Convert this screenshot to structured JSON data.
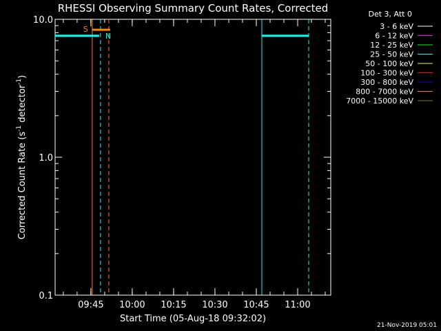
{
  "chart_data": {
    "type": "line",
    "title": "RHESSI Observing Summary Count Rates, Corrected",
    "xlabel": "Start Time (05-Aug-18 09:32:02)",
    "ylabel_main": "Corrected Count Rate (s",
    "ylabel_sup1": "-1",
    "ylabel_mid": " detector",
    "ylabel_sup2": "-1",
    "ylabel_end": ")",
    "y_scale": "log",
    "ylim": [
      0.1,
      10.0
    ],
    "xlim": [
      "09:32:02",
      "11:12:00"
    ],
    "x_ticks": [
      "09:45",
      "10:00",
      "10:15",
      "10:30",
      "10:45",
      "11:00"
    ],
    "y_ticks": [
      "0.1",
      "1.0",
      "10.0"
    ],
    "legend_title": "Det 3, Att 0",
    "legend_position": "right",
    "legend": [
      {
        "label": "3 - 6 keV",
        "color": "#ffffff"
      },
      {
        "label": "6 - 12 keV",
        "color": "#ff00ff"
      },
      {
        "label": "12 - 25 keV",
        "color": "#00ff00"
      },
      {
        "label": "25 - 50 keV",
        "color": "#00ffff"
      },
      {
        "label": "50 - 100 keV",
        "color": "#ffff00"
      },
      {
        "label": "100 - 300 keV",
        "color": "#ff0000"
      },
      {
        "label": "300 - 800 keV",
        "color": "#0000ff"
      },
      {
        "label": "800 - 7000 keV",
        "color": "#ff8000"
      },
      {
        "label": "7000 - 15000 keV",
        "color": "#808000"
      }
    ],
    "series": [
      {
        "name": "25 - 50 keV",
        "color": "#00ffff",
        "segments": [
          {
            "x": [
              "09:32:02",
              "09:48:00"
            ],
            "y": [
              7.6,
              7.6
            ]
          },
          {
            "x": [
              "10:47:00",
              "11:04:00"
            ],
            "y": [
              7.6,
              7.6
            ]
          }
        ]
      }
    ],
    "flag_bar": {
      "color": "#ff8000",
      "x": [
        "09:45:30",
        "09:52:00"
      ],
      "y": 8.4
    },
    "annotations": [
      {
        "text": "S",
        "color": "#ff8000"
      },
      {
        "text": "N",
        "color": "#00ffff"
      }
    ],
    "vlines": [
      {
        "x": "09:45:30",
        "color": "#ff8000",
        "style": "solid"
      },
      {
        "x": "09:48:30",
        "color": "#00ffff",
        "style": "dashed"
      },
      {
        "x": "09:51:30",
        "color": "#ff8000",
        "style": "dashed"
      },
      {
        "x": "10:47:00",
        "color": "#00ffff",
        "style": "solid"
      },
      {
        "x": "11:04:00",
        "color": "#00ffff",
        "style": "dashed"
      }
    ],
    "footer_date": "21-Nov-2019 05:01"
  }
}
